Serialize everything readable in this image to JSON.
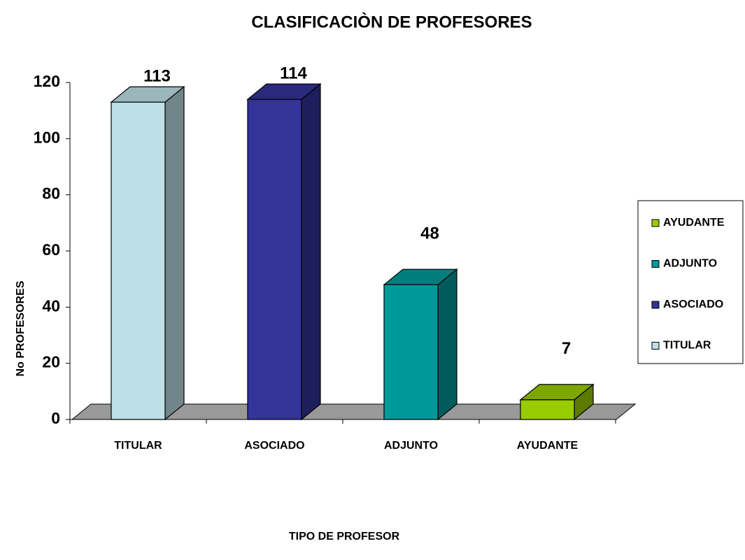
{
  "chart_data": {
    "type": "bar3d",
    "title": "CLASIFICACIÒN DE PROFESORES",
    "x_label": "TIPO DE PROFESOR",
    "y_label": "No PROFESORES",
    "categories": [
      "TITULAR",
      "ASOCIADO",
      "ADJUNTO",
      "AYUDANTE"
    ],
    "values": [
      113,
      114,
      48,
      7
    ],
    "colors": [
      "#bde0e6",
      "#333399",
      "#009999",
      "#99cc00"
    ],
    "ylim": [
      0,
      120
    ],
    "yticks": [
      0,
      20,
      40,
      60,
      80,
      100,
      120
    ],
    "legend": "right"
  }
}
